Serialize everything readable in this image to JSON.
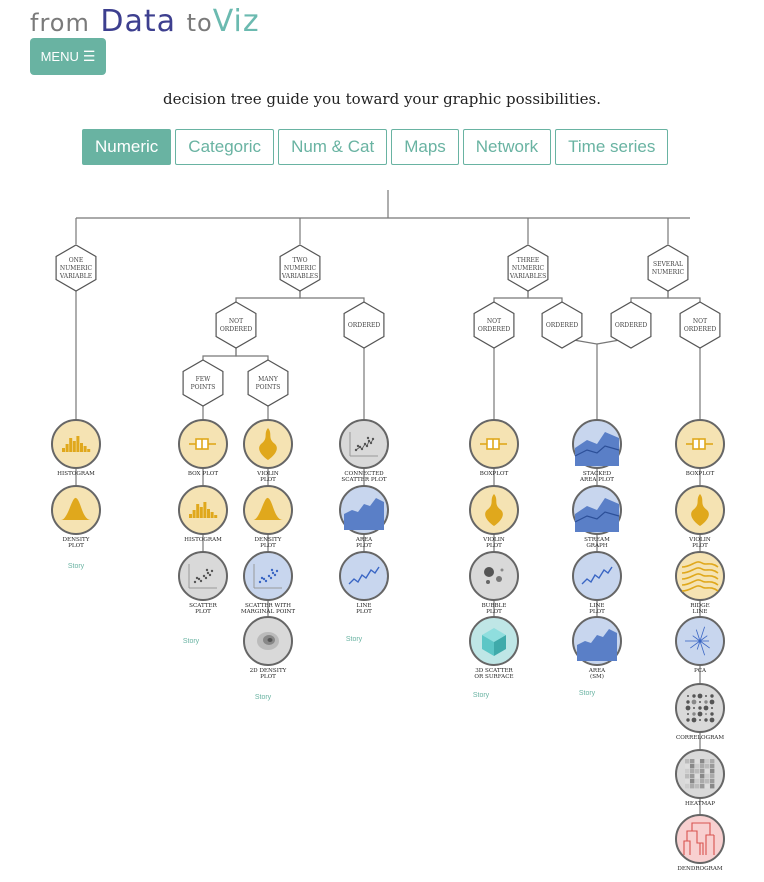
{
  "header": {
    "logo": {
      "w1": "from",
      "w2": "Data",
      "w3": "to",
      "w4": "Viz"
    },
    "menu_label": "MENU"
  },
  "intro_text": "decision tree guide you toward your graphic possibilities.",
  "tabs": [
    {
      "label": "Numeric",
      "active": true
    },
    {
      "label": "Categoric",
      "active": false
    },
    {
      "label": "Num & Cat",
      "active": false
    },
    {
      "label": "Maps",
      "active": false
    },
    {
      "label": "Network",
      "active": false
    },
    {
      "label": "Time series",
      "active": false
    }
  ],
  "colors": {
    "accent": "#69b3a2",
    "yellow_fill": "#f5e3b3",
    "blue_fill": "#c8d6ee",
    "grey_fill": "#d9d9d9",
    "teal_fill": "#bfe6e6",
    "pink_fill": "#f8d0d0"
  },
  "tree": {
    "questions": [
      [
        "ONE",
        "NUMERIC",
        "VARIABLE"
      ],
      [
        "TWO",
        "NUMERIC",
        "VARIABLES"
      ],
      [
        "THREE",
        "NUMERIC",
        "VARIABLES"
      ],
      [
        "SEVERAL",
        "NUMERIC"
      ],
      [
        "NOT",
        "ORDERED"
      ],
      [
        "ORDERED"
      ],
      [
        "FEW",
        "POINTS"
      ],
      [
        "MANY",
        "POINTS"
      ],
      [
        "NOT",
        "ORDERED"
      ],
      [
        "ORDERED"
      ],
      [
        "ORDERED"
      ],
      [
        "NOT",
        "ORDERED"
      ]
    ],
    "charts": [
      {
        "label": [
          "HISTOGRAM"
        ],
        "icon": "histogram-icon"
      },
      {
        "label": [
          "DENSITY",
          "PLOT"
        ],
        "icon": "density-icon"
      },
      {
        "label": [
          "BOX PLOT"
        ],
        "icon": "boxplot-icon"
      },
      {
        "label": [
          "HISTOGRAM"
        ],
        "icon": "histogram-icon"
      },
      {
        "label": [
          "SCATTER",
          "PLOT"
        ],
        "icon": "scatter-icon"
      },
      {
        "label": [
          "VIOLIN",
          "PLOT"
        ],
        "icon": "violin-icon"
      },
      {
        "label": [
          "DENSITY",
          "PLOT"
        ],
        "icon": "density-icon"
      },
      {
        "label": [
          "SCATTER WITH",
          "MARGINAL POINT"
        ],
        "icon": "marginal-scatter-icon"
      },
      {
        "label": [
          "2D DENSITY",
          "PLOT"
        ],
        "icon": "density2d-icon"
      },
      {
        "label": [
          "CONNECTED",
          "SCATTER PLOT"
        ],
        "icon": "connected-scatter-icon"
      },
      {
        "label": [
          "AREA",
          "PLOT"
        ],
        "icon": "area-icon"
      },
      {
        "label": [
          "LINE",
          "PLOT"
        ],
        "icon": "line-icon"
      },
      {
        "label": [
          "BOXPLOT"
        ],
        "icon": "boxplot-icon"
      },
      {
        "label": [
          "VIOLIN",
          "PLOT"
        ],
        "icon": "violin-icon"
      },
      {
        "label": [
          "BUBBLE",
          "PLOT"
        ],
        "icon": "bubble-icon"
      },
      {
        "label": [
          "3D SCATTER",
          "OR SURFACE"
        ],
        "icon": "cube-3d-icon"
      },
      {
        "label": [
          "STACKED",
          "AREA PLOT"
        ],
        "icon": "stacked-area-icon"
      },
      {
        "label": [
          "STREAM",
          "GRAPH"
        ],
        "icon": "streamgraph-icon"
      },
      {
        "label": [
          "LINE",
          "PLOT"
        ],
        "icon": "line-icon"
      },
      {
        "label": [
          "AREA",
          "(SM)"
        ],
        "icon": "area-sm-icon"
      },
      {
        "label": [
          "BOXPLOT"
        ],
        "icon": "boxplot-icon"
      },
      {
        "label": [
          "VIOLIN",
          "PLOT"
        ],
        "icon": "violin-icon"
      },
      {
        "label": [
          "RIDGE",
          "LINE"
        ],
        "icon": "ridgeline-icon"
      },
      {
        "label": [
          "PCA"
        ],
        "icon": "pca-icon"
      },
      {
        "label": [
          "CORRELOGRAM"
        ],
        "icon": "correlogram-icon"
      },
      {
        "label": [
          "HEATMAP"
        ],
        "icon": "heatmap-icon"
      },
      {
        "label": [
          "DENDROGRAM"
        ],
        "icon": "dendrogram-icon"
      }
    ],
    "story_label": "Story"
  }
}
